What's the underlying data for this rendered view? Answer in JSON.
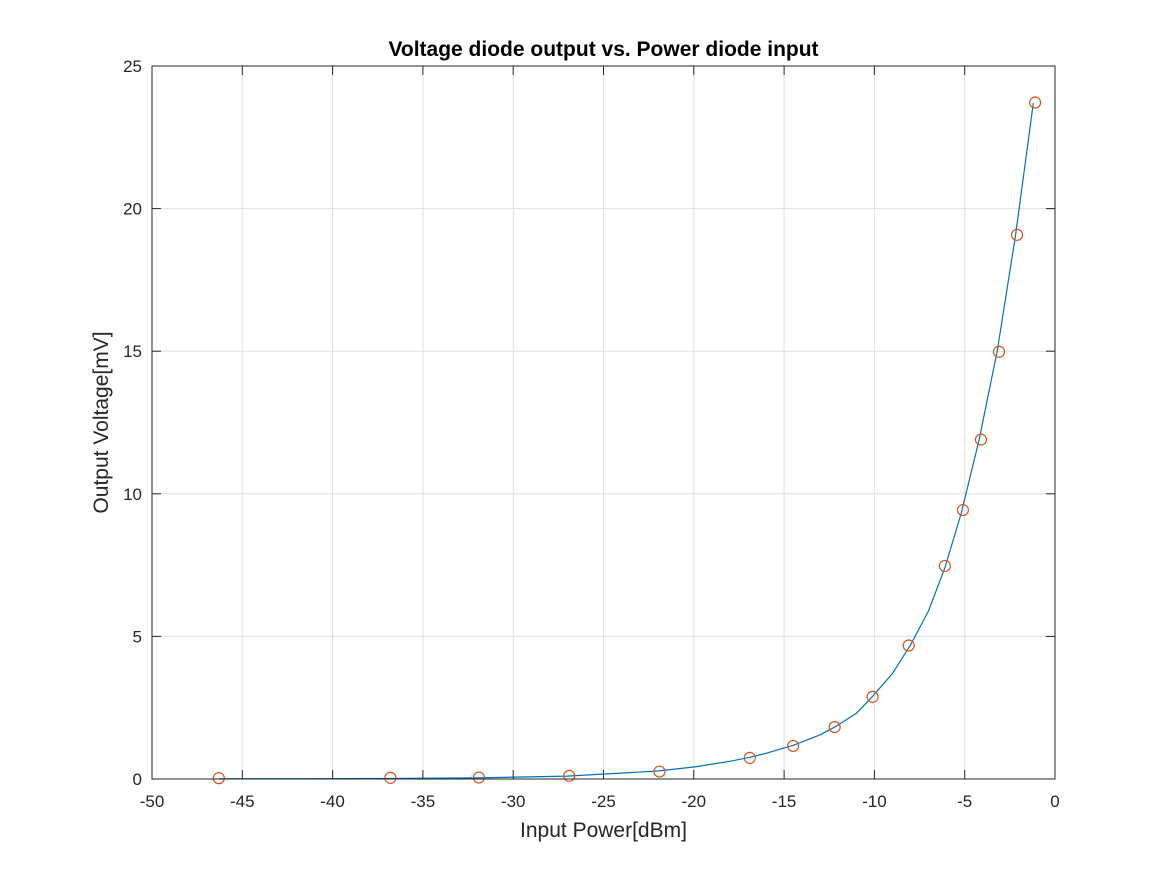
{
  "chart_data": {
    "type": "line",
    "title": "Voltage diode output vs. Power diode input",
    "xlabel": "Input Power[dBm]",
    "ylabel": "Output Voltage[mV]",
    "xlim": [
      -50,
      0
    ],
    "ylim": [
      0,
      25
    ],
    "xticks": [
      -50,
      -45,
      -40,
      -35,
      -30,
      -25,
      -20,
      -15,
      -10,
      -5,
      0
    ],
    "yticks": [
      0,
      5,
      10,
      15,
      20,
      25
    ],
    "xtick_labels": [
      "-50",
      "-45",
      "-40",
      "-35",
      "-30",
      "-25",
      "-20",
      "-15",
      "-10",
      "-5",
      "0"
    ],
    "ytick_labels": [
      "0",
      "5",
      "10",
      "15",
      "20",
      "25"
    ],
    "grid": true,
    "line_color": "#0072BD",
    "marker_color": "#D95319",
    "fit_curve": {
      "x": [
        -46.3,
        -42,
        -37,
        -32,
        -27,
        -22,
        -20,
        -18,
        -16.9,
        -16,
        -14.5,
        -13,
        -12.2,
        -11,
        -10.1,
        -9,
        -8,
        -7,
        -6.1,
        -5.2,
        -4.2,
        -3.2,
        -2.2,
        -1.2
      ],
      "y": [
        0.01,
        0.01,
        0.02,
        0.04,
        0.1,
        0.28,
        0.42,
        0.62,
        0.76,
        0.9,
        1.18,
        1.55,
        1.82,
        2.3,
        2.9,
        3.7,
        4.7,
        5.9,
        7.4,
        9.3,
        11.9,
        15.0,
        19.0,
        23.7
      ]
    },
    "measured_points": {
      "x": [
        -46.3,
        -36.8,
        -31.9,
        -26.9,
        -21.9,
        -16.9,
        -14.5,
        -12.2,
        -10.1,
        -8.1,
        -6.1,
        -5.1,
        -4.1,
        -3.1,
        -2.1,
        -1.1
      ],
      "y": [
        0.03,
        0.04,
        0.05,
        0.11,
        0.26,
        0.74,
        1.16,
        1.82,
        2.88,
        4.68,
        7.47,
        9.43,
        11.9,
        14.98,
        19.08,
        23.72
      ]
    }
  }
}
